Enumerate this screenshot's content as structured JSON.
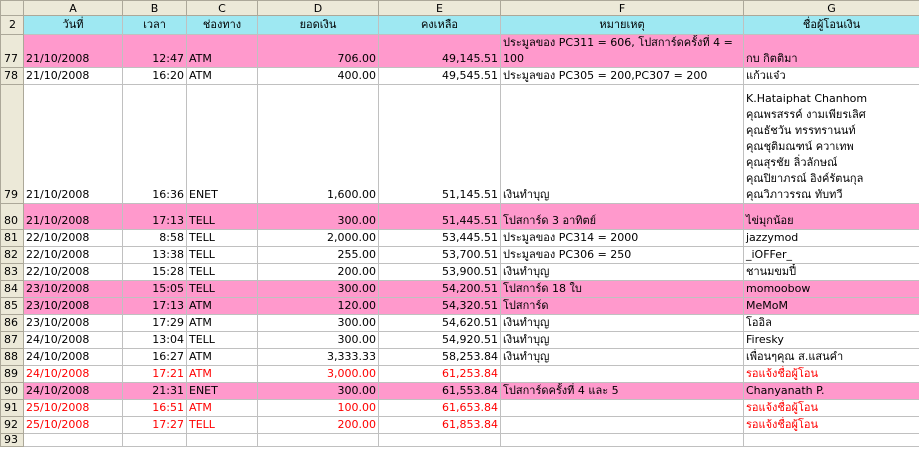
{
  "columns": [
    "A",
    "B",
    "C",
    "D",
    "E",
    "F",
    "G"
  ],
  "header_row": {
    "num": "2",
    "cells": [
      "วันที่",
      "เวลา",
      "ช่องทาง",
      "ยอดเงิน",
      "คงเหลือ",
      "หมายเหตุ",
      "ชื่อผู้โอนเงิน"
    ]
  },
  "rows": [
    {
      "num": "77",
      "date": "21/10/2008",
      "time": "12:47",
      "channel": "ATM",
      "amount": "706.00",
      "balance": "49,145.51",
      "note": "ประมูลของ PC311 = 606, โปสการ์ดครั้งที่ 4 = 100",
      "name": "กบ กิตติมา"
    },
    {
      "num": "78",
      "date": "21/10/2008",
      "time": "16:20",
      "channel": "ATM",
      "amount": "400.00",
      "balance": "49,545.51",
      "note": "ประมูลของ PC305 = 200,PC307 = 200",
      "name": "แก้วแจ๋ว"
    },
    {
      "num": "79",
      "date": "21/10/2008",
      "time": "16:36",
      "channel": "ENET",
      "amount": "1,600.00",
      "balance": "51,145.51",
      "note": "เงินทำบุญ",
      "names": [
        "K.Hataiphat Chanhom",
        "คุณพรสรรค์ งามเพียรเลิศ",
        "คุณธัชวัน ทรรทรานนท์",
        "คุณชุติมณฑน์ ควาเทพ",
        "คุณสุรชัย ลิ่วลักษณ์",
        "คุณปิยาภรณ์ อิงค์รัตนกุล",
        "คุณวิภาวรรณ ทับทวี"
      ]
    },
    {
      "num": "80",
      "date": "21/10/2008",
      "time": "17:13",
      "channel": "TELL",
      "amount": "300.00",
      "balance": "51,445.51",
      "note": "โปสการ์ด 3 อาทิตย์",
      "name": "ไข่มุกน้อย"
    },
    {
      "num": "81",
      "date": "22/10/2008",
      "time": "8:58",
      "channel": "TELL",
      "amount": "2,000.00",
      "balance": "53,445.51",
      "note": "ประมูลของ PC314 = 2000",
      "name": "jazzymod"
    },
    {
      "num": "82",
      "date": "22/10/2008",
      "time": "13:38",
      "channel": "TELL",
      "amount": "255.00",
      "balance": "53,700.51",
      "note": "ประมูลของ PC306 = 250",
      "name": "_iOFFer_"
    },
    {
      "num": "83",
      "date": "22/10/2008",
      "time": "15:28",
      "channel": "TELL",
      "amount": "200.00",
      "balance": "53,900.51",
      "note": "เงินทำบุญ",
      "name": "ชานมขมปี๋"
    },
    {
      "num": "84",
      "date": "23/10/2008",
      "time": "15:05",
      "channel": "TELL",
      "amount": "300.00",
      "balance": "54,200.51",
      "note": "โปสการ์ด 18 ใบ",
      "name": "momoobow"
    },
    {
      "num": "85",
      "date": "23/10/2008",
      "time": "17:13",
      "channel": "ATM",
      "amount": "120.00",
      "balance": "54,320.51",
      "note": "โปสการ์ด",
      "name": "MeMoM"
    },
    {
      "num": "86",
      "date": "23/10/2008",
      "time": "17:29",
      "channel": "ATM",
      "amount": "300.00",
      "balance": "54,620.51",
      "note": "เงินทำบุญ",
      "name": "โออิล"
    },
    {
      "num": "87",
      "date": "24/10/2008",
      "time": "13:04",
      "channel": "TELL",
      "amount": "300.00",
      "balance": "54,920.51",
      "note": "เงินทำบุญ",
      "name": "Firesky"
    },
    {
      "num": "88",
      "date": "24/10/2008",
      "time": "16:27",
      "channel": "ATM",
      "amount": "3,333.33",
      "balance": "58,253.84",
      "note": "เงินทำบุญ",
      "name": "เพื่อนๆคุณ ส.แสนคำ"
    },
    {
      "num": "89",
      "date": "24/10/2008",
      "time": "17:21",
      "channel": "ATM",
      "amount": "3,000.00",
      "balance": "61,253.84",
      "note": "",
      "name": "รอแจ้งชื่อผู้โอน"
    },
    {
      "num": "90",
      "date": "24/10/2008",
      "time": "21:31",
      "channel": "ENET",
      "amount": "300.00",
      "balance": "61,553.84",
      "note": "โปสการ์ดครั้งที่ 4 และ 5",
      "name": "Chanyanath P."
    },
    {
      "num": "91",
      "date": "25/10/2008",
      "time": "16:51",
      "channel": "ATM",
      "amount": "100.00",
      "balance": "61,653.84",
      "note": "",
      "name": "รอแจ้งชื่อผู้โอน"
    },
    {
      "num": "92",
      "date": "25/10/2008",
      "time": "17:27",
      "channel": "TELL",
      "amount": "200.00",
      "balance": "61,853.84",
      "note": "",
      "name": "รอแจ้งชื่อผู้โอน"
    }
  ],
  "empty_row": {
    "num": "93"
  },
  "colors": {
    "header_fill": "#9ee8f2",
    "highlight_fill": "#ff99cc",
    "pending_text": "#ff0000"
  }
}
